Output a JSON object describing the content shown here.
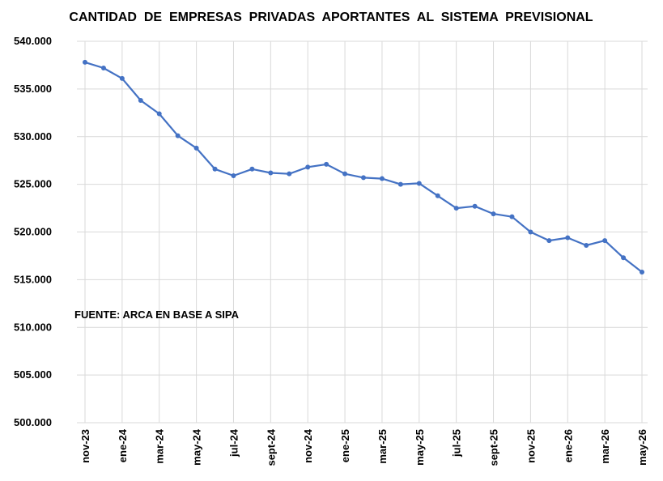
{
  "chart_data": {
    "type": "line",
    "title": "CANTIDAD  DE  EMPRESAS  PRIVADAS  APORTANTES  AL  SISTEMA  PREVISIONAL",
    "xlabel": "",
    "ylabel": "",
    "annotation": "FUENTE: ARCA EN BASE A SIPA",
    "ylim": [
      500000,
      540000
    ],
    "yticks": [
      500000,
      505000,
      510000,
      515000,
      520000,
      525000,
      530000,
      535000,
      540000
    ],
    "ytick_labels": [
      "500.000",
      "505.000",
      "510.000",
      "515.000",
      "520.000",
      "525.000",
      "530.000",
      "535.000",
      "540.000"
    ],
    "x_labels": [
      "nov-23",
      "ene-24",
      "mar-24",
      "may-24",
      "jul-24",
      "sept-24",
      "nov-24",
      "ene-25",
      "mar-25",
      "may-25",
      "jul-25",
      "sept-25",
      "nov-25",
      "ene-26",
      "mar-26",
      "may-26"
    ],
    "categories": [
      "nov-23",
      "dic-23",
      "ene-24",
      "feb-24",
      "mar-24",
      "abr-24",
      "may-24",
      "jun-24",
      "jul-24",
      "ago-24",
      "sept-24",
      "oct-24",
      "nov-24",
      "dic-24",
      "ene-25",
      "feb-25",
      "mar-25",
      "abr-25",
      "may-25",
      "jun-25",
      "jul-25",
      "ago-25",
      "sept-25",
      "oct-25",
      "nov-25",
      "dic-25",
      "ene-26",
      "feb-26",
      "mar-26",
      "abr-26",
      "may-26"
    ],
    "values": [
      537800,
      537200,
      536100,
      533800,
      532400,
      530100,
      528800,
      526600,
      525900,
      526600,
      526200,
      526100,
      526800,
      527100,
      526100,
      525700,
      525600,
      525000,
      525100,
      523800,
      522500,
      522700,
      521900,
      521600,
      520000,
      519100,
      519400,
      518600,
      519100,
      517300,
      515800
    ],
    "grid": true,
    "line_color": "#4472c4",
    "grid_color": "#d9d9d9"
  }
}
